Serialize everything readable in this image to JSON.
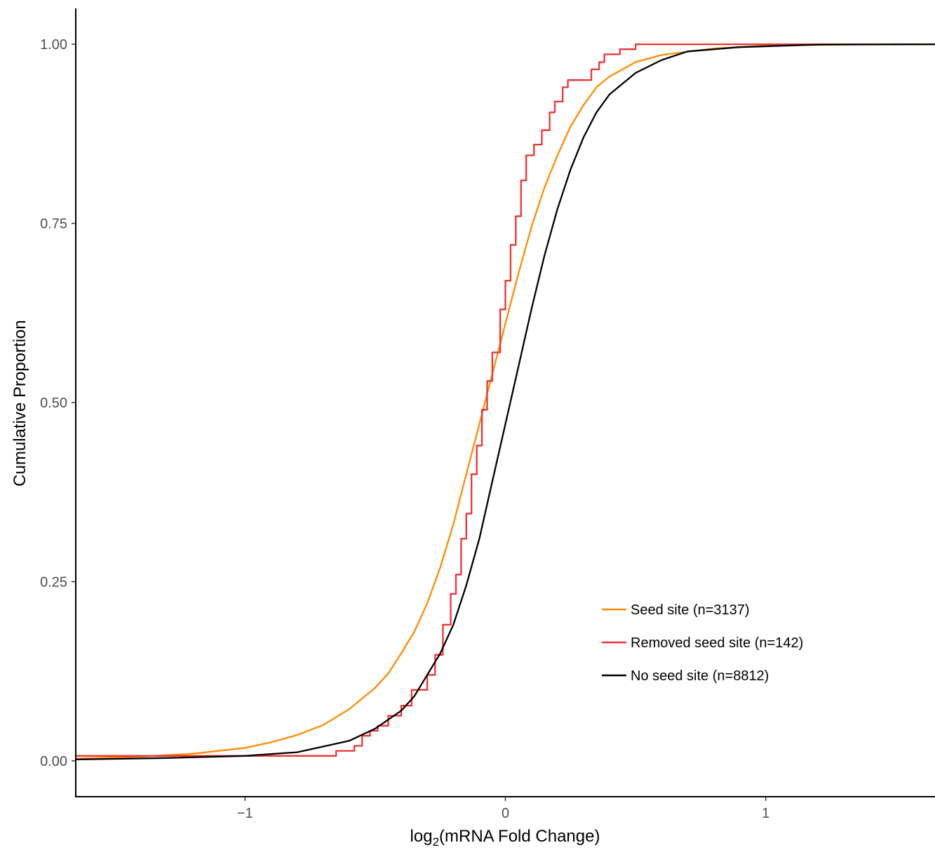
{
  "chart_data": {
    "type": "line",
    "title": "",
    "xlabel": "log2(mRNA Fold Change)",
    "xlabel_parts": {
      "base": "log",
      "sub": "2",
      "rest": "(mRNA Fold Change)"
    },
    "ylabel": "Cumulative Proportion",
    "xlim": [
      -1.65,
      1.65
    ],
    "ylim": [
      -0.05,
      1.05
    ],
    "x_ticks": [
      -1,
      0,
      1
    ],
    "x_tick_labels": [
      "−1",
      "0",
      "1"
    ],
    "y_ticks": [
      0,
      0.25,
      0.5,
      0.75,
      1
    ],
    "y_tick_labels": [
      "0.00",
      "0.25",
      "0.50",
      "0.75",
      "1.00"
    ],
    "grid": false,
    "legend_position": "bottom-right",
    "series": [
      {
        "name": "Seed site (n=3137)",
        "color": "#ff8c00",
        "step": false,
        "points": [
          [
            -1.65,
            0.003
          ],
          [
            -1.4,
            0.006
          ],
          [
            -1.2,
            0.01
          ],
          [
            -1.0,
            0.018
          ],
          [
            -0.9,
            0.026
          ],
          [
            -0.8,
            0.036
          ],
          [
            -0.7,
            0.05
          ],
          [
            -0.6,
            0.072
          ],
          [
            -0.5,
            0.102
          ],
          [
            -0.45,
            0.122
          ],
          [
            -0.4,
            0.15
          ],
          [
            -0.35,
            0.18
          ],
          [
            -0.3,
            0.22
          ],
          [
            -0.25,
            0.27
          ],
          [
            -0.2,
            0.33
          ],
          [
            -0.15,
            0.4
          ],
          [
            -0.1,
            0.47
          ],
          [
            -0.05,
            0.54
          ],
          [
            0.0,
            0.61
          ],
          [
            0.05,
            0.68
          ],
          [
            0.1,
            0.745
          ],
          [
            0.15,
            0.8
          ],
          [
            0.2,
            0.845
          ],
          [
            0.25,
            0.885
          ],
          [
            0.3,
            0.915
          ],
          [
            0.35,
            0.94
          ],
          [
            0.4,
            0.955
          ],
          [
            0.5,
            0.975
          ],
          [
            0.6,
            0.985
          ],
          [
            0.8,
            0.994
          ],
          [
            1.0,
            0.998
          ],
          [
            1.3,
            0.9995
          ],
          [
            1.65,
            1.0
          ]
        ]
      },
      {
        "name": "Removed seed site (n=142)",
        "color": "#ee3333",
        "step": true,
        "points": [
          [
            -1.65,
            0.007
          ],
          [
            -0.65,
            0.007
          ],
          [
            -0.65,
            0.014
          ],
          [
            -0.58,
            0.014
          ],
          [
            -0.58,
            0.021
          ],
          [
            -0.55,
            0.021
          ],
          [
            -0.55,
            0.035
          ],
          [
            -0.52,
            0.035
          ],
          [
            -0.52,
            0.042
          ],
          [
            -0.49,
            0.042
          ],
          [
            -0.49,
            0.049
          ],
          [
            -0.45,
            0.049
          ],
          [
            -0.45,
            0.063
          ],
          [
            -0.4,
            0.063
          ],
          [
            -0.4,
            0.077
          ],
          [
            -0.36,
            0.077
          ],
          [
            -0.36,
            0.099
          ],
          [
            -0.3,
            0.099
          ],
          [
            -0.3,
            0.12
          ],
          [
            -0.27,
            0.12
          ],
          [
            -0.27,
            0.148
          ],
          [
            -0.24,
            0.148
          ],
          [
            -0.24,
            0.19
          ],
          [
            -0.21,
            0.19
          ],
          [
            -0.21,
            0.233
          ],
          [
            -0.19,
            0.233
          ],
          [
            -0.19,
            0.26
          ],
          [
            -0.17,
            0.26
          ],
          [
            -0.17,
            0.31
          ],
          [
            -0.15,
            0.31
          ],
          [
            -0.15,
            0.345
          ],
          [
            -0.13,
            0.345
          ],
          [
            -0.13,
            0.4
          ],
          [
            -0.11,
            0.4
          ],
          [
            -0.11,
            0.44
          ],
          [
            -0.09,
            0.44
          ],
          [
            -0.09,
            0.49
          ],
          [
            -0.07,
            0.49
          ],
          [
            -0.07,
            0.53
          ],
          [
            -0.05,
            0.53
          ],
          [
            -0.05,
            0.57
          ],
          [
            -0.02,
            0.57
          ],
          [
            -0.02,
            0.63
          ],
          [
            0.0,
            0.63
          ],
          [
            0.0,
            0.67
          ],
          [
            0.02,
            0.67
          ],
          [
            0.02,
            0.72
          ],
          [
            0.04,
            0.72
          ],
          [
            0.04,
            0.76
          ],
          [
            0.06,
            0.76
          ],
          [
            0.06,
            0.81
          ],
          [
            0.08,
            0.81
          ],
          [
            0.08,
            0.845
          ],
          [
            0.11,
            0.845
          ],
          [
            0.11,
            0.86
          ],
          [
            0.14,
            0.86
          ],
          [
            0.14,
            0.88
          ],
          [
            0.17,
            0.88
          ],
          [
            0.17,
            0.905
          ],
          [
            0.19,
            0.905
          ],
          [
            0.19,
            0.92
          ],
          [
            0.22,
            0.92
          ],
          [
            0.22,
            0.94
          ],
          [
            0.24,
            0.94
          ],
          [
            0.24,
            0.95
          ],
          [
            0.33,
            0.95
          ],
          [
            0.33,
            0.965
          ],
          [
            0.36,
            0.965
          ],
          [
            0.36,
            0.975
          ],
          [
            0.38,
            0.975
          ],
          [
            0.38,
            0.986
          ],
          [
            0.44,
            0.986
          ],
          [
            0.44,
            0.993
          ],
          [
            0.5,
            0.993
          ],
          [
            0.5,
            1.0
          ],
          [
            1.65,
            1.0
          ]
        ]
      },
      {
        "name": "No seed site (n=8812)",
        "color": "#000000",
        "step": false,
        "points": [
          [
            -1.65,
            0.002
          ],
          [
            -1.3,
            0.004
          ],
          [
            -1.0,
            0.007
          ],
          [
            -0.8,
            0.012
          ],
          [
            -0.7,
            0.02
          ],
          [
            -0.6,
            0.028
          ],
          [
            -0.5,
            0.045
          ],
          [
            -0.4,
            0.07
          ],
          [
            -0.35,
            0.09
          ],
          [
            -0.3,
            0.12
          ],
          [
            -0.25,
            0.15
          ],
          [
            -0.2,
            0.19
          ],
          [
            -0.15,
            0.245
          ],
          [
            -0.1,
            0.31
          ],
          [
            -0.05,
            0.39
          ],
          [
            0.0,
            0.47
          ],
          [
            0.05,
            0.55
          ],
          [
            0.1,
            0.63
          ],
          [
            0.15,
            0.705
          ],
          [
            0.2,
            0.77
          ],
          [
            0.25,
            0.825
          ],
          [
            0.3,
            0.87
          ],
          [
            0.35,
            0.905
          ],
          [
            0.4,
            0.93
          ],
          [
            0.5,
            0.96
          ],
          [
            0.6,
            0.978
          ],
          [
            0.7,
            0.99
          ],
          [
            0.9,
            0.996
          ],
          [
            1.2,
            0.9995
          ],
          [
            1.65,
            1.0
          ]
        ]
      }
    ]
  }
}
